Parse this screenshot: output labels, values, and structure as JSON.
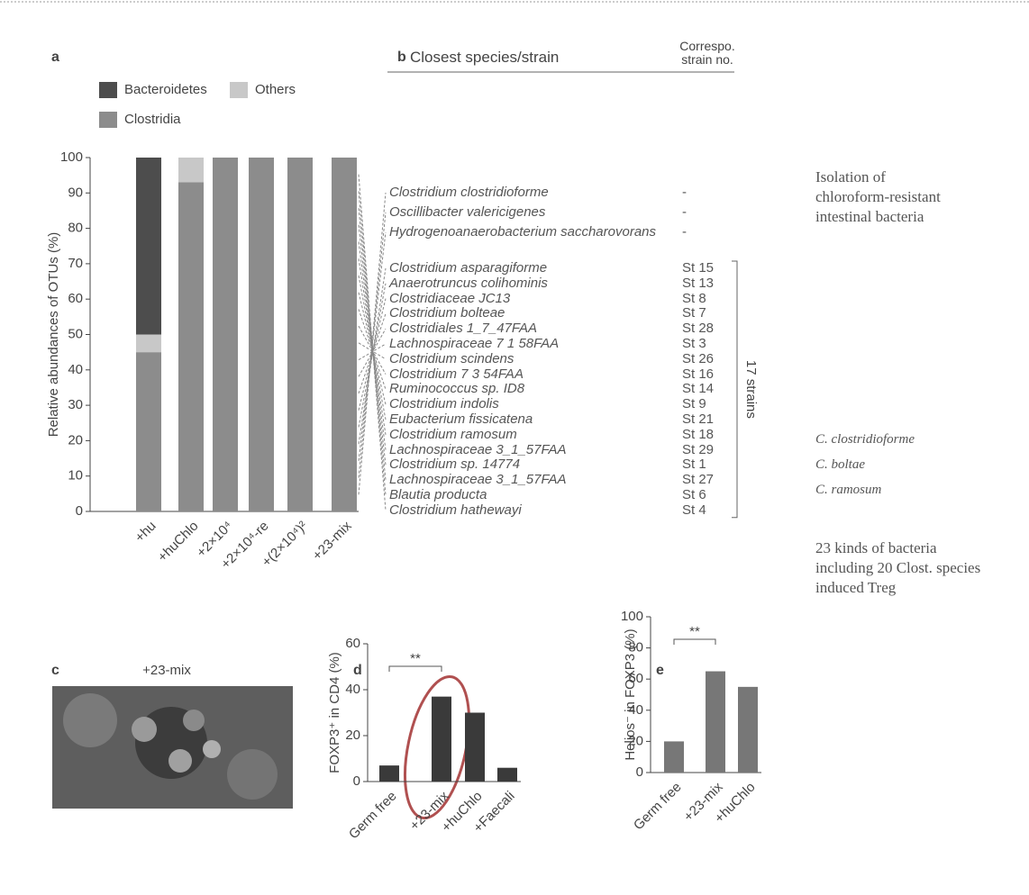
{
  "chart_data": [
    {
      "type": "stackedbar",
      "panel": "a",
      "ylabel": "Relative abundances of OTUs (%)",
      "categories": [
        "+hu",
        "+huChlo",
        "+2×10⁴",
        "+2×10⁴-re",
        "+(2×10⁴)²",
        "+23-mix"
      ],
      "series": [
        {
          "name": "Clostridia",
          "color": "#8c8c8c",
          "values": [
            45,
            93,
            100,
            100,
            100,
            100
          ]
        },
        {
          "name": "Others",
          "color": "#c8c8c8",
          "values": [
            5,
            7,
            0,
            0,
            0,
            0
          ]
        },
        {
          "name": "Bacteroidetes",
          "color": "#4d4d4d",
          "values": [
            50,
            0,
            0,
            0,
            0,
            0
          ]
        }
      ],
      "ylim": [
        0,
        100
      ],
      "yticks": [
        0,
        10,
        20,
        30,
        40,
        50,
        60,
        70,
        80,
        90,
        100
      ]
    },
    {
      "type": "bar",
      "panel": "d",
      "ylabel": "FOXP3⁺ in CD4 (%)",
      "categories": [
        "Germ free",
        "+23-mix",
        "+huChlo",
        "+Faecali"
      ],
      "values": [
        7,
        37,
        30,
        6
      ],
      "color": "#3a3a3a",
      "ylim": [
        0,
        60
      ],
      "yticks": [
        0,
        20,
        40,
        60
      ],
      "annotation": "**"
    },
    {
      "type": "bar",
      "panel": "e",
      "ylabel": "Helios⁻ in FOXP3 (%)",
      "categories": [
        "Germ free",
        "+23-mix",
        "+huChlo"
      ],
      "values": [
        20,
        65,
        55
      ],
      "color": "#777777",
      "ylim": [
        0,
        100
      ],
      "yticks": [
        0,
        20,
        40,
        60,
        80,
        100
      ],
      "annotation": "**"
    }
  ],
  "panel_b": {
    "label": "b",
    "header": [
      "Closest species/strain",
      "Correspo. strain no."
    ],
    "rows": [
      [
        "Clostridium clostridioforme",
        "-"
      ],
      [
        "Oscillibacter valericigenes",
        "-"
      ],
      [
        "Hydrogenoanaerobacterium saccharovorans",
        "-"
      ],
      [
        "Clostridium asparagiforme",
        "St 15"
      ],
      [
        "Anaerotruncus colihominis",
        "St 13"
      ],
      [
        "Clostridiaceae JC13",
        "St 8"
      ],
      [
        "Clostridium bolteae",
        "St 7"
      ],
      [
        "Clostridiales 1_7_47FAA",
        "St 28"
      ],
      [
        "Lachnospiraceae 7 1 58FAA",
        "St 3"
      ],
      [
        "Clostridium scindens",
        "St 26"
      ],
      [
        "Clostridium 7 3 54FAA",
        "St 16"
      ],
      [
        "Ruminococcus sp. ID8",
        "St 14"
      ],
      [
        "Clostridium indolis",
        "St 9"
      ],
      [
        "Eubacterium fissicatena",
        "St 21"
      ],
      [
        "Clostridium ramosum",
        "St 18"
      ],
      [
        "Lachnospiraceae 3_1_57FAA",
        "St 29"
      ],
      [
        "Clostridium sp. 14774",
        "St 1"
      ],
      [
        "Lachnospiraceae 3_1_57FAA",
        "St 27"
      ],
      [
        "Blautia producta",
        "St 6"
      ],
      [
        "Clostridium hathewayi",
        "St 4"
      ]
    ],
    "bracket_label": "17 strains"
  },
  "panel_c": {
    "label": "c",
    "title": "+23-mix"
  },
  "notes": {
    "isolation": "Isolation of chloroform-resistant intestinal bacteria",
    "species": [
      "C. clostridioforme",
      "C. boltae",
      "C. ramosum"
    ],
    "conclusion": "23 kinds of bacteria including 20 Clost. species induced Treg"
  }
}
